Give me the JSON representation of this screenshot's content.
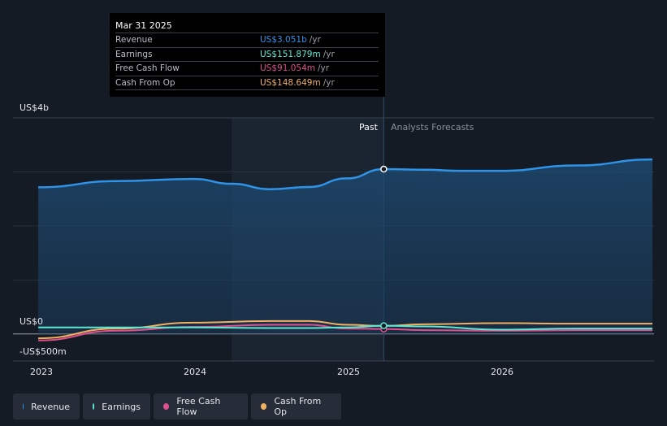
{
  "tooltip": {
    "date": "Mar 31 2025",
    "rows": [
      {
        "label": "Revenue",
        "value": "US$3.051b",
        "unit": "/yr",
        "color": "#2f93e8"
      },
      {
        "label": "Earnings",
        "value": "US$151.879m",
        "unit": "/yr",
        "color": "#5ee8d2"
      },
      {
        "label": "Free Cash Flow",
        "value": "US$91.054m",
        "unit": "/yr",
        "color": "#e0508f"
      },
      {
        "label": "Cash From Op",
        "value": "US$148.649m",
        "unit": "/yr",
        "color": "#f0b060"
      }
    ]
  },
  "axis": {
    "y_top": "US$4b",
    "y_zero": "US$0",
    "y_bottom": "-US$500m",
    "x_ticks": [
      "2023",
      "2024",
      "2025",
      "2026"
    ]
  },
  "divider": {
    "past": "Past",
    "forecast": "Analysts Forecasts"
  },
  "legend": [
    {
      "label": "Revenue",
      "color": "#2f93e8"
    },
    {
      "label": "Earnings",
      "color": "#5ee8d2"
    },
    {
      "label": "Free Cash Flow",
      "color": "#e0508f"
    },
    {
      "label": "Cash From Op",
      "color": "#f0b060"
    }
  ],
  "chart_data": {
    "type": "line",
    "ylim": [
      -500,
      4000
    ],
    "x_ticks": [
      "2023",
      "2024",
      "2025",
      "2026"
    ],
    "grid": true,
    "legend_position": "bottom-left",
    "divider_date": "Mar 31 2025",
    "series": [
      {
        "name": "Revenue",
        "color": "#2f93e8",
        "x": [
          2022.99,
          2023.5,
          2024.0,
          2024.25,
          2024.5,
          2024.75,
          2025.0,
          2025.24,
          2025.5,
          2025.75,
          2026.0,
          2026.5,
          2026.99
        ],
        "values": [
          2715,
          2830,
          2870,
          2780,
          2680,
          2720,
          2880,
          3051,
          3040,
          3020,
          3020,
          3120,
          3230
        ]
      },
      {
        "name": "Earnings",
        "color": "#5ee8d2",
        "x": [
          2022.99,
          2023.5,
          2024.0,
          2024.5,
          2024.75,
          2025.0,
          2025.24,
          2025.5,
          2026.0,
          2026.5,
          2026.99
        ],
        "values": [
          120,
          120,
          120,
          110,
          110,
          120,
          151.879,
          140,
          80,
          100,
          100
        ]
      },
      {
        "name": "Free Cash Flow",
        "color": "#e0508f",
        "x": [
          2022.99,
          2023.5,
          2024.0,
          2024.5,
          2024.75,
          2025.0,
          2025.24,
          2025.5,
          2026.0,
          2026.5,
          2026.99
        ],
        "values": [
          -120,
          60,
          130,
          170,
          170,
          100,
          91.054,
          70,
          60,
          70,
          70
        ]
      },
      {
        "name": "Cash From Op",
        "color": "#f0b060",
        "x": [
          2022.99,
          2023.5,
          2024.0,
          2024.5,
          2024.75,
          2025.0,
          2025.24,
          2025.5,
          2026.0,
          2026.5,
          2026.99
        ],
        "values": [
          -80,
          100,
          210,
          240,
          240,
          170,
          148.649,
          180,
          200,
          190,
          190
        ]
      }
    ]
  }
}
